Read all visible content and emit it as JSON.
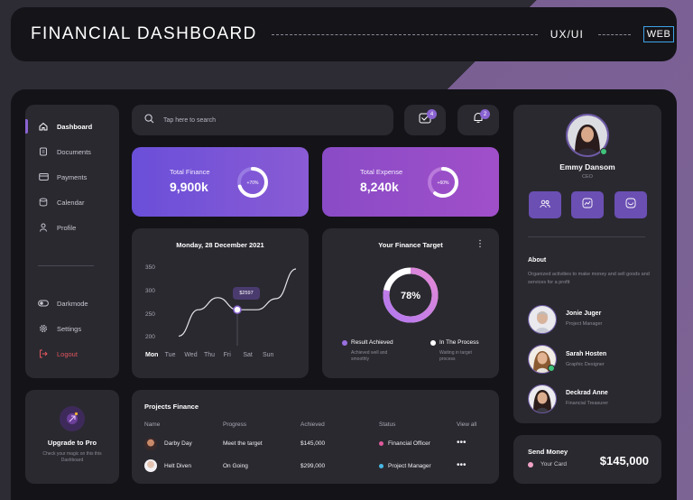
{
  "header": {
    "title": "FINANCIAL DASHBOARD",
    "tag": "UX/UI",
    "platform": "WEB"
  },
  "sidebar": {
    "items": [
      {
        "label": "Dashboard",
        "icon": "home-icon",
        "active": true
      },
      {
        "label": "Documents",
        "icon": "document-icon"
      },
      {
        "label": "Payments",
        "icon": "credit-card-icon"
      },
      {
        "label": "Calendar",
        "icon": "calendar-icon"
      },
      {
        "label": "Profile",
        "icon": "user-icon"
      }
    ],
    "bottom_items": [
      {
        "label": "Darkmode",
        "icon": "toggle-icon"
      },
      {
        "label": "Settings",
        "icon": "gear-icon"
      },
      {
        "label": "Logout",
        "icon": "logout-icon"
      }
    ]
  },
  "upgrade": {
    "title": "Upgrade to Pro",
    "subtitle": "Check your magic on this this Dashboard"
  },
  "search": {
    "placeholder": "Tap here to search"
  },
  "notifications": {
    "messages_count": "4",
    "alerts_count": "2"
  },
  "finance_cards": [
    {
      "label": "Total Finance",
      "value": "9,900k",
      "percent_label": "+70%",
      "percent": 70
    },
    {
      "label": "Total Expense",
      "value": "8,240k",
      "percent_label": "+60%",
      "percent": 60
    }
  ],
  "chart": {
    "title": "Monday, 28 December 2021",
    "tooltip": "$2597",
    "active_day": "Mon"
  },
  "chart_data": {
    "type": "line",
    "title": "Monday, 28 December 2021",
    "categories": [
      "Mon",
      "Tue",
      "Wed",
      "Thu",
      "Fri",
      "Sat",
      "Sun"
    ],
    "yticks": [
      "350",
      "300",
      "250",
      "200"
    ],
    "ylim": [
      200,
      350
    ],
    "values": [
      205,
      262,
      288,
      262,
      262,
      286,
      350
    ],
    "highlight": {
      "category": "Thu",
      "label": "$2597"
    },
    "grid": false
  },
  "target": {
    "title": "Your Finance Target",
    "percent_label": "78%",
    "percent": 78,
    "legend": [
      {
        "label": "Result Achieved",
        "sub": "Achieved well and smoothly",
        "color": "#9a6fe0"
      },
      {
        "label": "In The Process",
        "sub": "Waiting in target process",
        "color": "#ffffff"
      }
    ]
  },
  "projects": {
    "title": "Projects Finance",
    "columns": [
      "Name",
      "Progress",
      "Achieved",
      "Status",
      "View all"
    ],
    "rows": [
      {
        "name": "Darby Day",
        "progress": "Meet the target",
        "achieved": "$145,000",
        "status": "Financial Officer",
        "status_color": "#e05a9c"
      },
      {
        "name": "Helt Diven",
        "progress": "On Going",
        "achieved": "$299,000",
        "status": "Project Manager",
        "status_color": "#49b7e3"
      }
    ]
  },
  "profile": {
    "name": "Emmy Dansom",
    "role": "CEO",
    "about_title": "About",
    "about_text": "Organized activities to make money and sell goods and services for a profit",
    "team": [
      {
        "name": "Jonie Juger",
        "role": "Project Manager"
      },
      {
        "name": "Sarah Hosten",
        "role": "Graphic Designer"
      },
      {
        "name": "Deckrad Anne",
        "role": "Financial Treasurer"
      }
    ]
  },
  "send_money": {
    "title": "Send Money",
    "card_label": "Your Card",
    "amount": "$145,000"
  },
  "colors": {
    "accent": "#8a63d2",
    "card_bg": "#2a2930",
    "frame_bg": "#141318",
    "logout": "#e0565d"
  }
}
